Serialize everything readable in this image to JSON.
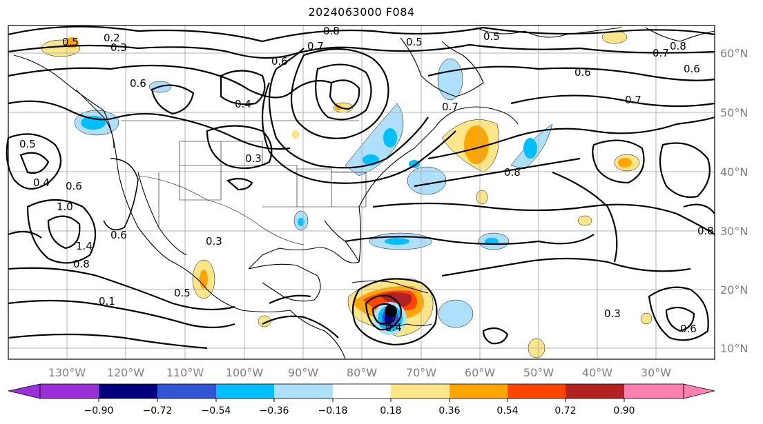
{
  "title": "2024063000 F084",
  "map": {
    "lon_labels": [
      "130°W",
      "120°W",
      "110°W",
      "100°W",
      "90°W",
      "80°W",
      "70°W",
      "60°W",
      "50°W",
      "40°W",
      "30°W"
    ],
    "lat_labels": [
      "60°N",
      "50°N",
      "40°N",
      "30°N",
      "20°N",
      "10°N"
    ],
    "contour_labels": [
      "0.2",
      "0.3",
      "0.5",
      "0.8",
      "0.5",
      "0.5",
      "0.8",
      "0.7",
      "0.6",
      "0.6",
      "0.4",
      "0.6",
      "0.7",
      "0.6",
      "0.7",
      "0.5",
      "0.4",
      "0.6",
      "1.0",
      "1.4",
      "0.8",
      "0.6",
      "0.3",
      "0.5",
      "0.1",
      "0.3",
      "0.8",
      "0.7",
      "0.3",
      "0.6",
      "0.8",
      "0.4"
    ],
    "storm_marker": "tropical-cyclone-center"
  },
  "colorbar": {
    "tick_labels": [
      "−0.90",
      "−0.72",
      "−0.54",
      "−0.36",
      "−0.18",
      "0.18",
      "0.36",
      "0.54",
      "0.72",
      "0.90"
    ],
    "colors": [
      "#9b30d9",
      "#00007f",
      "#3355d4",
      "#00bfff",
      "#aee0fb",
      "#ffffff",
      "#fde68a",
      "#ffa500",
      "#ff4500",
      "#b22222",
      "#ff7fae"
    ]
  }
}
